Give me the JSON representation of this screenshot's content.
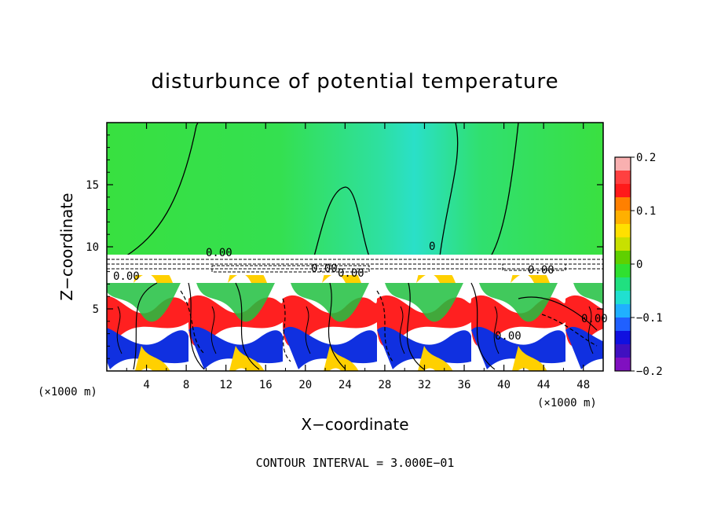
{
  "chart_data": {
    "type": "heatmap",
    "title": "disturbunce of potential temperature",
    "xlabel": "X−coordinate",
    "ylabel": "Z−coordinate",
    "x_unit": "(×1000 m)",
    "x_unit_right": "(×1000 m)",
    "x_ticks": [
      4,
      8,
      12,
      16,
      20,
      24,
      28,
      32,
      36,
      40,
      44,
      48
    ],
    "y_ticks": [
      5,
      10,
      15
    ],
    "xlim": [
      0,
      50
    ],
    "ylim": [
      0,
      20
    ],
    "colorbar": {
      "ticks": [
        0.2,
        0.1,
        0,
        -0.1,
        -0.2
      ],
      "tick_labels": [
        "0.2",
        "0.1",
        "0",
        "−0.1",
        "−0.2"
      ],
      "range": [
        -0.2,
        0.2
      ],
      "colors": [
        "#f9b0b0",
        "#ff4040",
        "#ff1a1a",
        "#ff8000",
        "#ffb000",
        "#ffe000",
        "#c8e000",
        "#60d000",
        "#30e030",
        "#20e080",
        "#20e0d0",
        "#20b0ff",
        "#2060ff",
        "#1010e0",
        "#4010c0",
        "#8010c0"
      ]
    },
    "contour_labels": [
      "0.00",
      "0.00",
      "0.00",
      "0.00",
      "0.00",
      "0.00",
      "0.00",
      "0"
    ],
    "contour_interval": "CONTOUR INTERVAL = 3.000E−01"
  }
}
